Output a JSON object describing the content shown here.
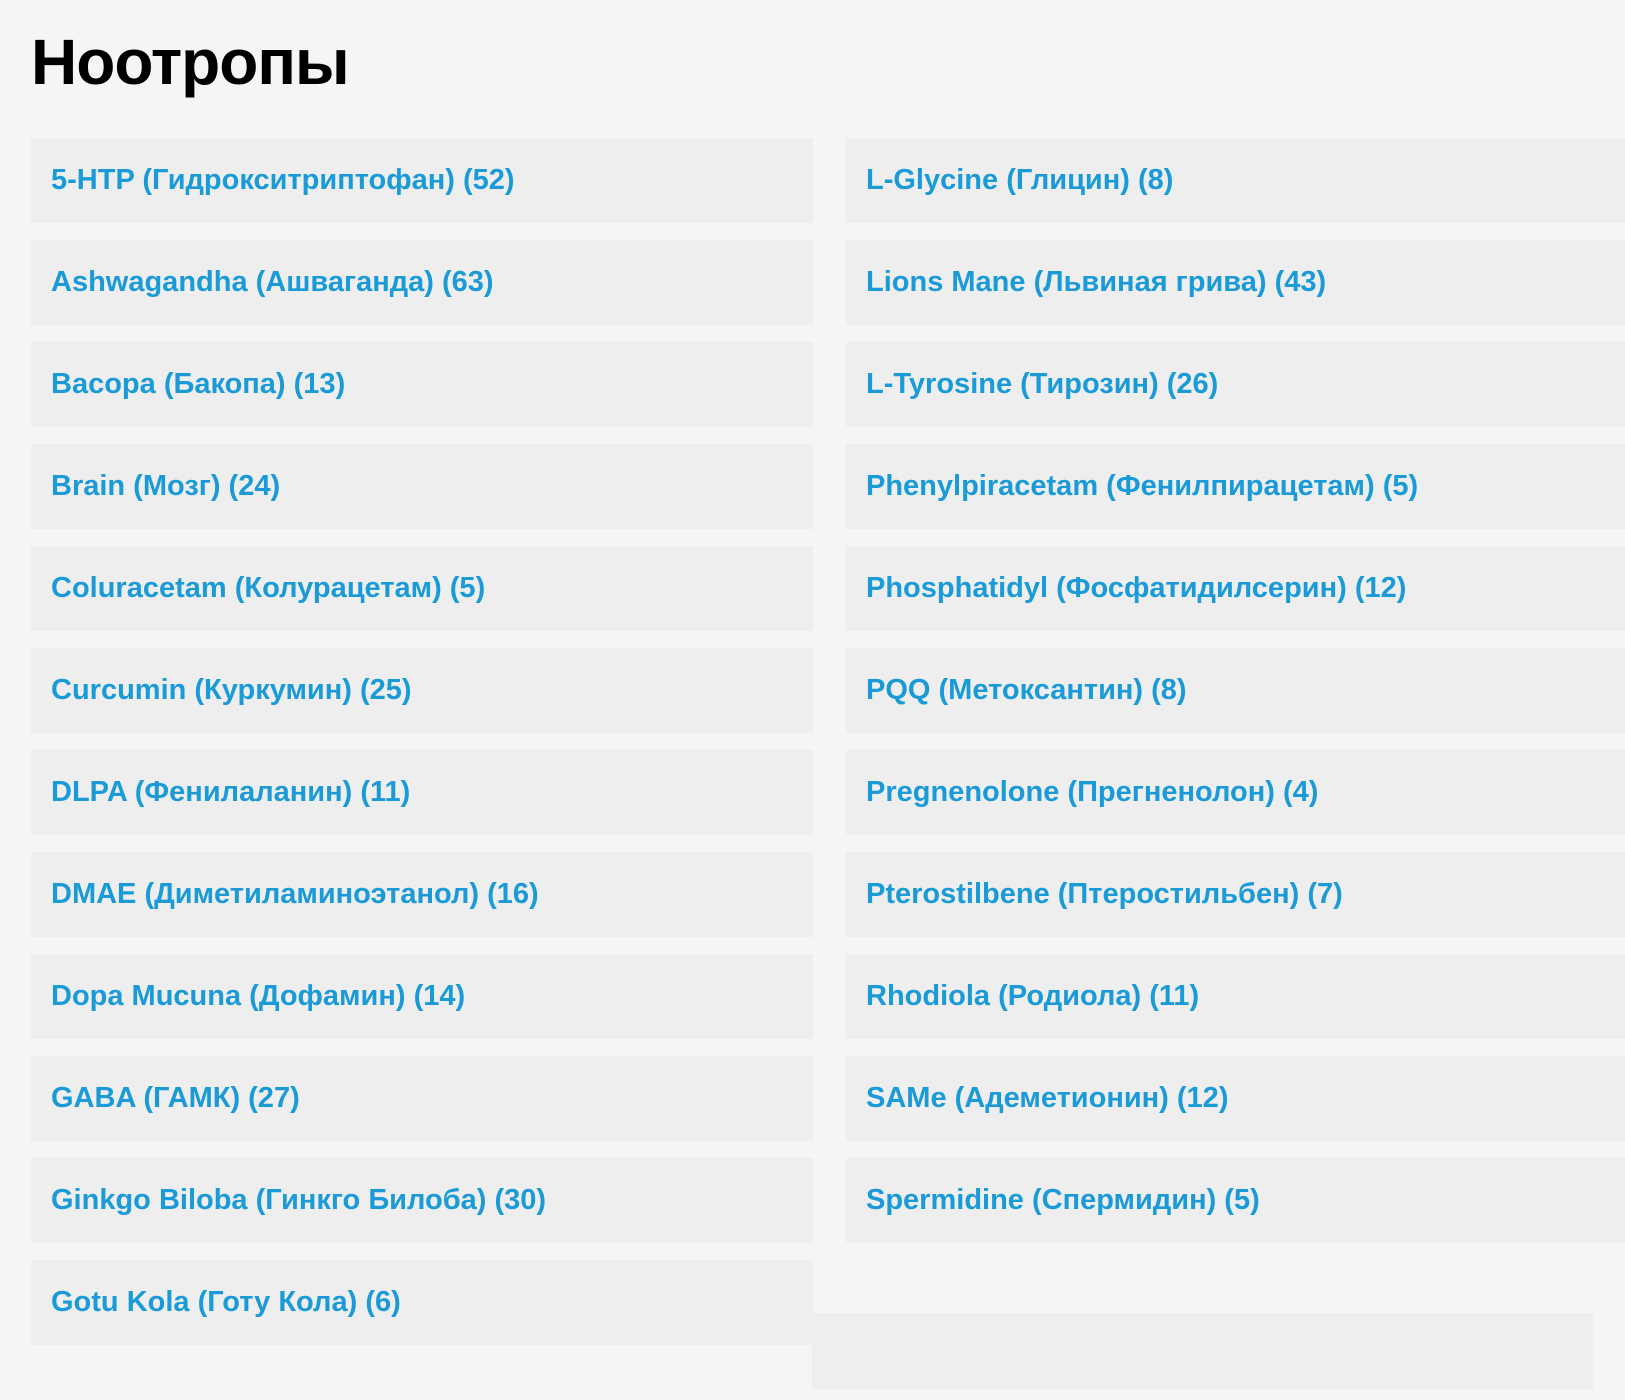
{
  "page": {
    "title": "Ноотропы"
  },
  "colors": {
    "page_bg": "#f5f5f6",
    "item_bg": "#eeeeee",
    "link": "#1a9ad6",
    "title": "#000000"
  },
  "columns": {
    "left": [
      {
        "label": "5-HTP (Гидрокситриптофан) (52)",
        "count": 52
      },
      {
        "label": "Ashwagandha (Ашваганда) (63)",
        "count": 63
      },
      {
        "label": "Bacopa (Бакопа) (13)",
        "count": 13
      },
      {
        "label": "Brain (Мозг) (24)",
        "count": 24
      },
      {
        "label": "Coluracetam (Колурацетам) (5)",
        "count": 5
      },
      {
        "label": "Curcumin (Куркумин) (25)",
        "count": 25
      },
      {
        "label": "DLPA (Фенилаланин) (11)",
        "count": 11
      },
      {
        "label": "DMAE (Диметиламиноэтанол) (16)",
        "count": 16
      },
      {
        "label": "Dopa Mucuna (Дофамин) (14)",
        "count": 14
      },
      {
        "label": "GABA (ГАМК) (27)",
        "count": 27
      },
      {
        "label": "Ginkgo Biloba (Гинкго Билоба) (30)",
        "count": 30
      },
      {
        "label": "Gotu Kola (Готу Кола) (6)",
        "count": 6
      }
    ],
    "right": [
      {
        "label": "L-Glycine (Глицин) (8)",
        "count": 8
      },
      {
        "label": "Lions Mane (Львиная грива) (43)",
        "count": 43
      },
      {
        "label": "L-Tyrosine (Тирозин) (26)",
        "count": 26
      },
      {
        "label": "Phenylpiracetam (Фенилпирацетам) (5)",
        "count": 5
      },
      {
        "label": "Phosphatidyl (Фосфатидилсерин) (12)",
        "count": 12
      },
      {
        "label": "PQQ (Метоксантин) (8)",
        "count": 8
      },
      {
        "label": "Pregnenolone (Прегненолон) (4)",
        "count": 4
      },
      {
        "label": "Pterostilbene (Птеростильбен) (7)",
        "count": 7
      },
      {
        "label": "Rhodiola (Родиола) (11)",
        "count": 11
      },
      {
        "label": "SAMe (Адеметионин) (12)",
        "count": 12
      },
      {
        "label": "Spermidine (Спермидин) (5)",
        "count": 5
      }
    ]
  }
}
